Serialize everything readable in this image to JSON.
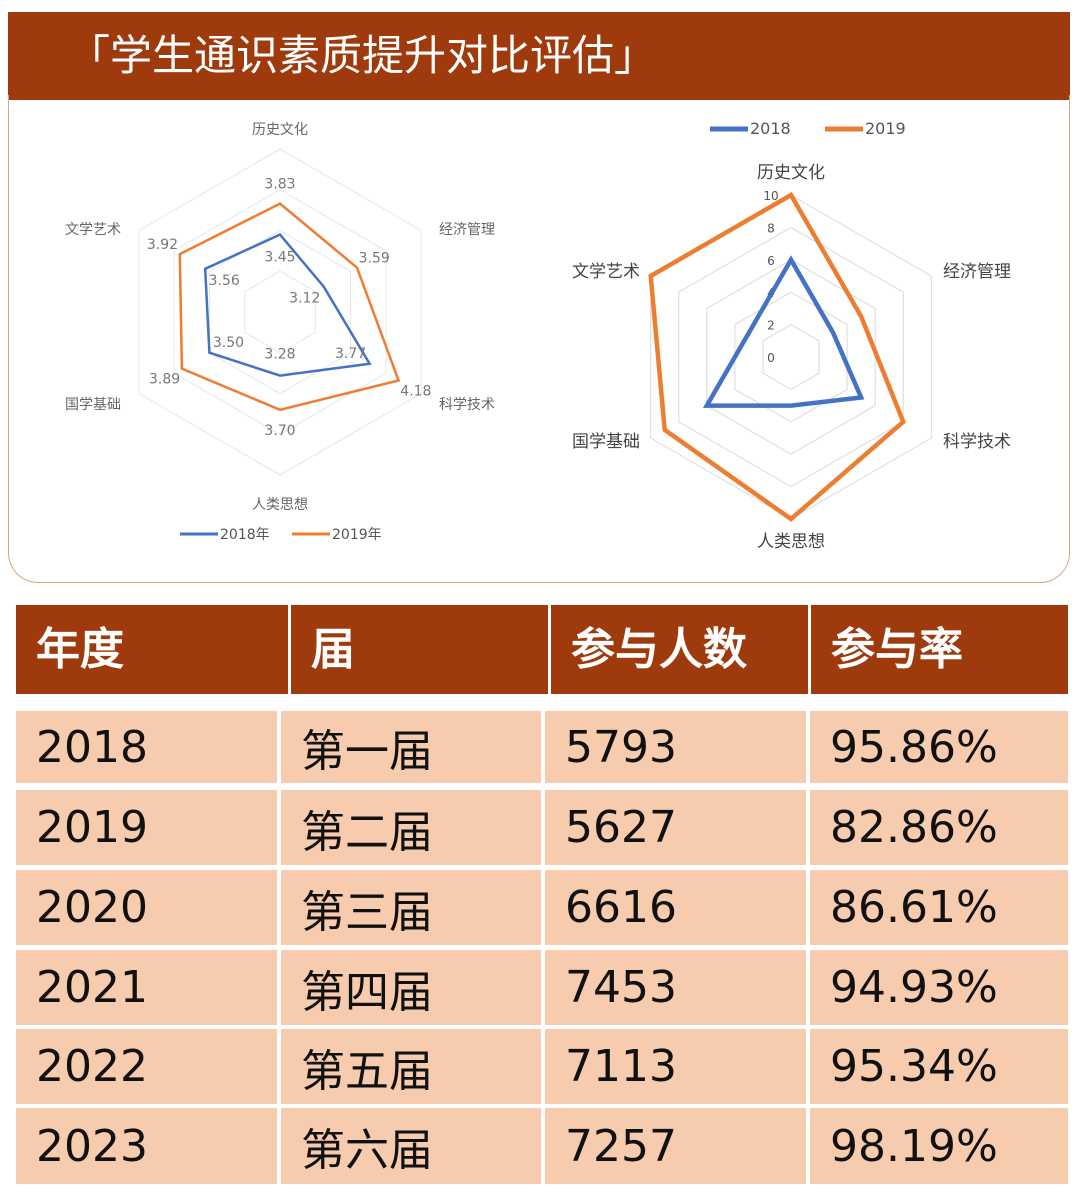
{
  "title": "「学生通识素质提升对比评估」",
  "chart_data": [
    {
      "type": "radar",
      "axes": [
        "历史文化",
        "经济管理",
        "科学技术",
        "人类思想",
        "国学基础",
        "文学艺术"
      ],
      "range": [
        2.5,
        4.5
      ],
      "series": [
        {
          "name": "2018年",
          "color": "#4472C4",
          "values": [
            3.45,
            3.12,
            3.77,
            3.28,
            3.5,
            3.56
          ],
          "labels": [
            "3.45",
            "3.12",
            "3.77",
            "3.28",
            "3.50",
            "3.56"
          ]
        },
        {
          "name": "2019年",
          "color": "#ED7D31",
          "values": [
            3.83,
            3.59,
            4.18,
            3.7,
            3.89,
            3.92
          ],
          "labels": [
            "3.83",
            "3.59",
            "4.18",
            "3.70",
            "3.89",
            "3.92"
          ]
        }
      ],
      "legend": "bottom"
    },
    {
      "type": "radar",
      "axes": [
        "历史文化",
        "经济管理",
        "科学技术",
        "人类思想",
        "国学基础",
        "文学艺术"
      ],
      "range": [
        0,
        10
      ],
      "ticks": [
        "0",
        "2",
        "4",
        "6",
        "8",
        "10"
      ],
      "series": [
        {
          "name": "2018",
          "color": "#4472C4",
          "values": [
            6,
            3,
            5,
            3,
            6,
            3
          ]
        },
        {
          "name": "2019",
          "color": "#ED7D31",
          "values": [
            10,
            5,
            8,
            10,
            9,
            10
          ]
        }
      ],
      "legend": "top"
    }
  ],
  "table": {
    "headers": [
      "年度",
      "届",
      "参与人数",
      "参与率"
    ],
    "rows": [
      [
        "2018",
        "第一届",
        "5793",
        "95.86%"
      ],
      [
        "2019",
        "第二届",
        "5627",
        "82.86%"
      ],
      [
        "2020",
        "第三届",
        "6616",
        "86.61%"
      ],
      [
        "2021",
        "第四届",
        "7453",
        "94.93%"
      ],
      [
        "2022",
        "第五届",
        "7113",
        "95.34%"
      ],
      [
        "2023",
        "第六届",
        "7257",
        "98.19%"
      ]
    ]
  }
}
